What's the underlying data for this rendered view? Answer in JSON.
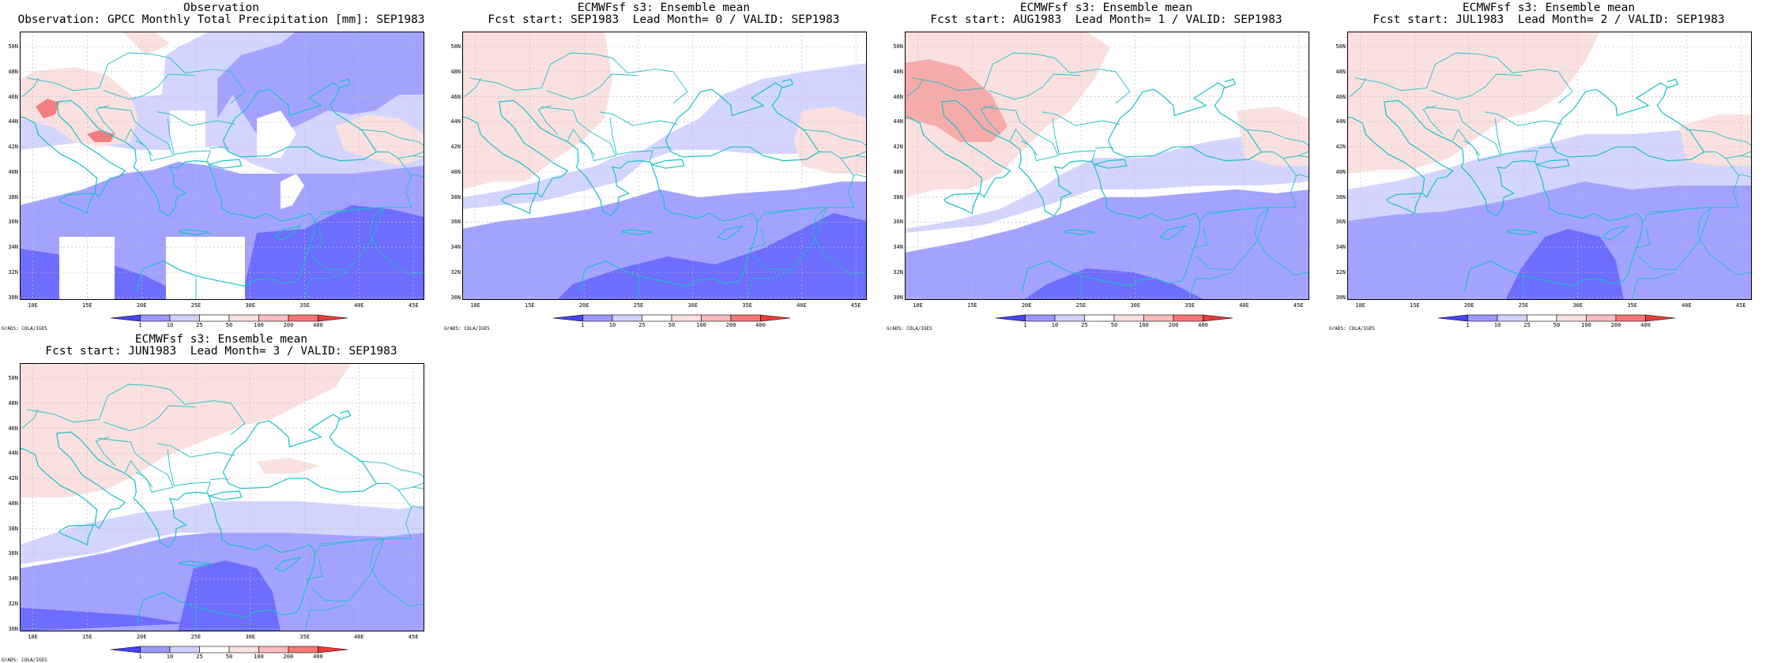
{
  "panels": [
    {
      "title1": "Observation",
      "title2": "Observation: GPCC Monthly Total Precipitation [mm]: SEP1983",
      "variant": "obs"
    },
    {
      "title1": "ECMWFsf s3: Ensemble mean",
      "title2": "Fcst start: SEP1983  Lead Month= 0 / VALID: SEP1983",
      "variant": "l0"
    },
    {
      "title1": "ECMWFsf s3: Ensemble mean",
      "title2": "Fcst start: AUG1983  Lead Month= 1 / VALID: SEP1983",
      "variant": "l1"
    },
    {
      "title1": "ECMWFsf s3: Ensemble mean",
      "title2": "Fcst start: JUL1983  Lead Month= 2 / VALID: SEP1983",
      "variant": "l2"
    },
    {
      "title1": "ECMWFsf s3: Ensemble mean",
      "title2": "Fcst start: JUN1983  Lead Month= 3 / VALID: SEP1983",
      "variant": "l3"
    }
  ],
  "lat_labels": [
    "50N",
    "48N",
    "46N",
    "44N",
    "42N",
    "40N",
    "38N",
    "36N",
    "34N",
    "32N",
    "30N"
  ],
  "lon_labels": [
    "10E",
    "15E",
    "20E",
    "25E",
    "30E",
    "35E",
    "40E",
    "45E"
  ],
  "colorbar": {
    "labels": [
      "1",
      "10",
      "25",
      "50",
      "100",
      "200",
      "400"
    ],
    "colors": [
      "#4545ff",
      "#9999ff",
      "#cfd0ff",
      "#ffffff",
      "#fde1e1",
      "#fbbdbd",
      "#f77777",
      "#ef3b3b"
    ]
  },
  "footer": "GrADS: COLA/IGES",
  "colors": {
    "coast": "#17c1c6",
    "deep_blue": "#6d6dff",
    "mid_blue": "#a3a3ff",
    "light_blue": "#d3d5ff",
    "light_red": "#fbe0e0",
    "mid_red": "#f7abab",
    "strong_red": "#f27f7f",
    "grid": "#c0c0c0"
  }
}
